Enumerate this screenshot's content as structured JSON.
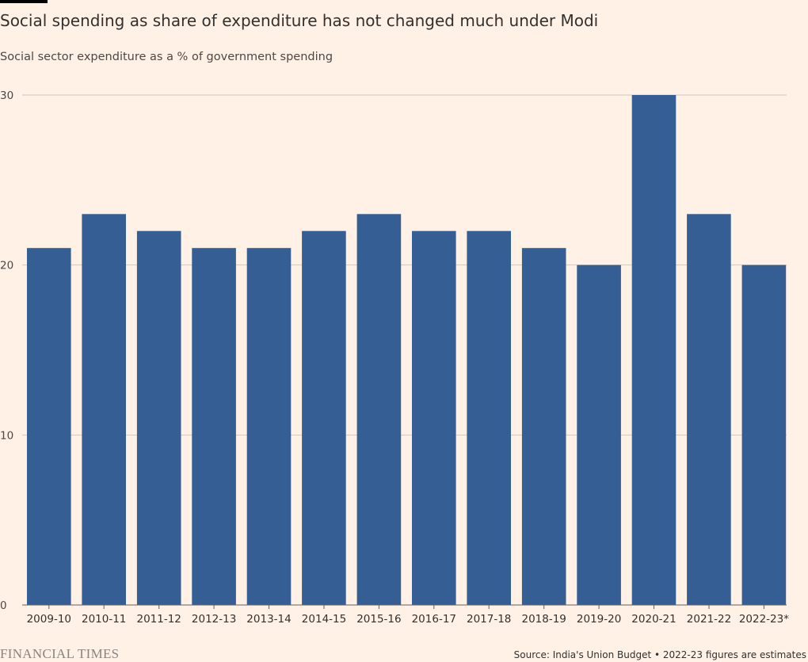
{
  "title": "Social spending as share of expenditure has not changed much under Modi",
  "subtitle": "Social sector expenditure as a % of government spending",
  "brand": "FINANCIAL TIMES",
  "source": "Source: India's Union Budget • 2022-23 figures are estimates",
  "colors": {
    "background": "#fff1e5",
    "bar": "#355f94",
    "grid": "#cfc6bd",
    "accent": "#000000"
  },
  "chart_data": {
    "type": "bar",
    "title": "Social spending as share of expenditure has not changed much under Modi",
    "subtitle": "Social sector expenditure as a % of government spending",
    "xlabel": "",
    "ylabel": "",
    "categories": [
      "2009-10",
      "2010-11",
      "2011-12",
      "2012-13",
      "2013-14",
      "2014-15",
      "2015-16",
      "2016-17",
      "2017-18",
      "2018-19",
      "2019-20",
      "2020-21",
      "2021-22",
      "2022-23*"
    ],
    "values": [
      21,
      23,
      22,
      21,
      21,
      22,
      23,
      22,
      22,
      21,
      20,
      30,
      23,
      20
    ],
    "ylim": [
      0,
      30
    ],
    "yticks": [
      0,
      10,
      20,
      30
    ],
    "grid": true,
    "legend": "none"
  }
}
